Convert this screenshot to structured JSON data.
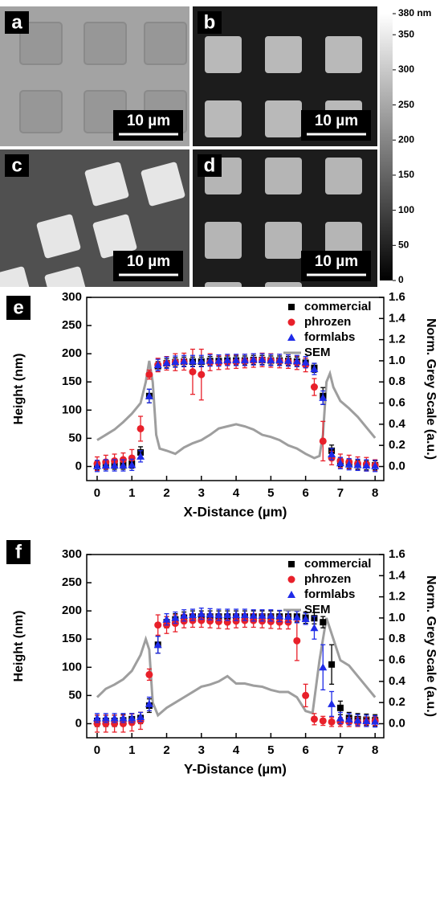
{
  "panels": [
    {
      "label": "a",
      "scale_bar": "10 µm"
    },
    {
      "label": "b",
      "scale_bar": "10 µm"
    },
    {
      "label": "c",
      "scale_bar": "10 µm"
    },
    {
      "label": "d",
      "scale_bar": "10 µm"
    }
  ],
  "colorbar": {
    "lim": [
      0,
      380
    ],
    "ticks": [
      {
        "value": 380,
        "label": "380 nm"
      },
      350,
      300,
      250,
      200,
      150,
      100,
      50,
      0
    ]
  },
  "chart_data": [
    {
      "type": "scatter",
      "label": "e",
      "x_label": "X-Distance (µm)",
      "y_label": "Height (nm)",
      "y2_label": "Norm. Grey Scale (a.u.)",
      "xlim": [
        -0.3,
        8.25
      ],
      "xticks": [
        0,
        1,
        2,
        3,
        4,
        5,
        6,
        7,
        8
      ],
      "ylim": [
        -25,
        300
      ],
      "yticks": [
        0,
        50,
        100,
        150,
        200,
        250,
        300
      ],
      "y2lim": [
        -0.133,
        1.6
      ],
      "y2ticks": [
        {
          "value": 0,
          "label": "0.0"
        },
        0.2,
        0.4,
        0.6,
        0.8,
        {
          "value": 1,
          "label": "1.0"
        },
        1.2,
        1.4,
        1.6
      ],
      "legend": "upper right",
      "x": [
        0,
        0.25,
        0.5,
        0.75,
        1,
        1.25,
        1.5,
        1.75,
        2,
        2.25,
        2.5,
        2.75,
        3,
        3.25,
        3.5,
        3.75,
        4,
        4.25,
        4.5,
        4.75,
        5,
        5.25,
        5.5,
        5.75,
        6,
        6.25,
        6.5,
        6.75,
        7,
        7.25,
        7.5,
        7.75,
        8
      ],
      "series": [
        {
          "name": "commercial",
          "color": "#000000",
          "marker": "square",
          "values": [
            2,
            3,
            3,
            3,
            5,
            25,
            125,
            178,
            183,
            185,
            186,
            186,
            186,
            187,
            187,
            188,
            188,
            188,
            189,
            189,
            188,
            188,
            187,
            186,
            184,
            175,
            125,
            28,
            8,
            5,
            3,
            2,
            2
          ],
          "errors": [
            8,
            8,
            8,
            8,
            8,
            10,
            12,
            8,
            8,
            8,
            8,
            8,
            8,
            8,
            8,
            8,
            8,
            8,
            8,
            8,
            8,
            8,
            8,
            8,
            8,
            8,
            15,
            10,
            8,
            8,
            8,
            8,
            8
          ]
        },
        {
          "name": "phrozen",
          "color": "#e8202a",
          "marker": "circle",
          "values": [
            5,
            8,
            10,
            12,
            15,
            67,
            163,
            180,
            183,
            185,
            186,
            168,
            163,
            185,
            184,
            185,
            186,
            187,
            188,
            189,
            188,
            187,
            186,
            184,
            180,
            141,
            45,
            15,
            10,
            8,
            5,
            4,
            2
          ],
          "errors": [
            12,
            12,
            12,
            12,
            15,
            22,
            8,
            12,
            12,
            15,
            15,
            40,
            45,
            15,
            12,
            12,
            12,
            12,
            12,
            12,
            12,
            12,
            12,
            12,
            12,
            15,
            35,
            12,
            12,
            12,
            12,
            12,
            10
          ]
        },
        {
          "name": "formlabs",
          "color": "#1f2be8",
          "marker": "triangle",
          "values": [
            1,
            2,
            2,
            2,
            3,
            18,
            125,
            180,
            184,
            186,
            187,
            187,
            187,
            188,
            188,
            189,
            189,
            189,
            190,
            190,
            189,
            189,
            188,
            187,
            185,
            173,
            122,
            22,
            6,
            4,
            3,
            2,
            1
          ],
          "errors": [
            10,
            10,
            10,
            10,
            10,
            10,
            12,
            10,
            10,
            10,
            10,
            10,
            10,
            10,
            10,
            10,
            10,
            10,
            10,
            10,
            10,
            10,
            10,
            10,
            10,
            10,
            12,
            10,
            10,
            10,
            10,
            10,
            10
          ]
        },
        {
          "name": "SEM",
          "color": "#9e9e9e",
          "type": "line",
          "axis": "y2",
          "x": [
            0,
            0.25,
            0.5,
            0.75,
            1,
            1.25,
            1.4,
            1.5,
            1.6,
            1.7,
            1.8,
            2,
            2.25,
            2.5,
            2.75,
            3,
            3.25,
            3.5,
            3.75,
            4,
            4.25,
            4.5,
            4.75,
            5,
            5.25,
            5.5,
            5.75,
            6,
            6.25,
            6.4,
            6.5,
            6.6,
            6.7,
            6.8,
            7,
            7.25,
            7.5,
            7.75,
            8
          ],
          "values": [
            0.25,
            0.3,
            0.35,
            0.42,
            0.5,
            0.6,
            0.8,
            1.0,
            0.8,
            0.3,
            0.17,
            0.15,
            0.12,
            0.18,
            0.22,
            0.25,
            0.3,
            0.36,
            0.38,
            0.4,
            0.38,
            0.35,
            0.3,
            0.28,
            0.25,
            0.2,
            0.17,
            0.12,
            0.08,
            0.1,
            0.3,
            0.8,
            0.88,
            0.75,
            0.62,
            0.55,
            0.47,
            0.37,
            0.27
          ]
        }
      ]
    },
    {
      "type": "scatter",
      "label": "f",
      "x_label": "Y-Distance (µm)",
      "y_label": "Height (nm)",
      "y2_label": "Norm. Grey Scale (a.u.)",
      "xlim": [
        -0.3,
        8.25
      ],
      "xticks": [
        0,
        1,
        2,
        3,
        4,
        5,
        6,
        7,
        8
      ],
      "ylim": [
        -25,
        300
      ],
      "yticks": [
        0,
        50,
        100,
        150,
        200,
        250,
        300
      ],
      "y2lim": [
        -0.133,
        1.6
      ],
      "y2ticks": [
        {
          "value": 0,
          "label": "0.0"
        },
        0.2,
        0.4,
        0.6,
        0.8,
        {
          "value": 1,
          "label": "1.0"
        },
        1.2,
        1.4,
        1.6
      ],
      "legend": "upper right",
      "x": [
        0,
        0.25,
        0.5,
        0.75,
        1,
        1.25,
        1.5,
        1.75,
        2,
        2.25,
        2.5,
        2.75,
        3,
        3.25,
        3.5,
        3.75,
        4,
        4.25,
        4.5,
        4.75,
        5,
        5.25,
        5.5,
        5.75,
        6,
        6.25,
        6.5,
        6.75,
        7,
        7.25,
        7.5,
        7.75,
        8
      ],
      "series": [
        {
          "name": "commercial",
          "color": "#000000",
          "marker": "square",
          "values": [
            5,
            5,
            5,
            6,
            8,
            10,
            32,
            140,
            180,
            185,
            188,
            190,
            190,
            190,
            190,
            190,
            190,
            190,
            190,
            190,
            190,
            190,
            190,
            190,
            188,
            187,
            180,
            105,
            28,
            10,
            8,
            7,
            6
          ],
          "errors": [
            10,
            10,
            10,
            10,
            10,
            10,
            12,
            15,
            10,
            10,
            10,
            10,
            10,
            10,
            10,
            10,
            10,
            10,
            10,
            10,
            10,
            10,
            10,
            10,
            10,
            10,
            10,
            35,
            12,
            10,
            10,
            10,
            10
          ]
        },
        {
          "name": "phrozen",
          "color": "#e8202a",
          "marker": "circle",
          "values": [
            0,
            0,
            0,
            0,
            2,
            5,
            87,
            175,
            175,
            178,
            182,
            183,
            183,
            182,
            181,
            180,
            182,
            183,
            183,
            182,
            181,
            180,
            180,
            147,
            50,
            8,
            5,
            3,
            3,
            3,
            3,
            3,
            5
          ],
          "errors": [
            15,
            15,
            15,
            15,
            15,
            15,
            10,
            18,
            15,
            15,
            12,
            12,
            12,
            12,
            12,
            12,
            12,
            12,
            12,
            12,
            12,
            12,
            12,
            35,
            20,
            10,
            8,
            8,
            8,
            8,
            8,
            8,
            8
          ]
        },
        {
          "name": "formlabs",
          "color": "#1f2be8",
          "marker": "triangle",
          "values": [
            10,
            10,
            10,
            10,
            10,
            12,
            35,
            140,
            185,
            188,
            192,
            193,
            195,
            194,
            193,
            193,
            193,
            193,
            192,
            192,
            192,
            191,
            190,
            189,
            186,
            170,
            100,
            35,
            10,
            8,
            6,
            5,
            4
          ],
          "errors": [
            8,
            8,
            8,
            8,
            8,
            8,
            12,
            15,
            10,
            10,
            10,
            10,
            10,
            10,
            10,
            10,
            10,
            10,
            10,
            10,
            10,
            10,
            10,
            10,
            10,
            20,
            40,
            22,
            10,
            10,
            10,
            10,
            10
          ]
        },
        {
          "name": "SEM",
          "color": "#9e9e9e",
          "type": "line",
          "axis": "y2",
          "x": [
            0,
            0.25,
            0.5,
            0.75,
            1,
            1.25,
            1.4,
            1.5,
            1.6,
            1.75,
            2,
            2.25,
            2.5,
            2.75,
            3,
            3.25,
            3.5,
            3.75,
            4,
            4.25,
            4.5,
            4.75,
            5,
            5.25,
            5.5,
            5.75,
            6,
            6.2,
            6.4,
            6.6,
            6.8,
            7,
            7.25,
            7.5,
            7.75,
            8
          ],
          "values": [
            0.25,
            0.33,
            0.37,
            0.42,
            0.5,
            0.65,
            0.8,
            0.7,
            0.2,
            0.08,
            0.15,
            0.2,
            0.25,
            0.3,
            0.35,
            0.37,
            0.4,
            0.45,
            0.38,
            0.38,
            0.36,
            0.35,
            0.32,
            0.3,
            0.3,
            0.25,
            0.12,
            0.1,
            0.6,
            1.0,
            0.8,
            0.6,
            0.55,
            0.45,
            0.35,
            0.25
          ]
        }
      ]
    }
  ]
}
